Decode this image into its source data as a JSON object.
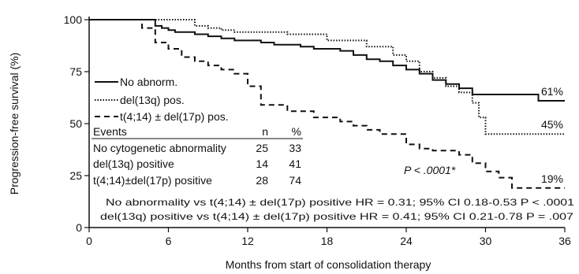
{
  "chart_data": {
    "type": "line",
    "subtype": "kaplan-meier step curves",
    "xlabel": "Months from start of consolidation therapy",
    "ylabel": "Progression-free survival (%)",
    "xlim": [
      0,
      36
    ],
    "ylim": [
      0,
      100
    ],
    "xticks": [
      0,
      6,
      12,
      18,
      24,
      30,
      36
    ],
    "yticks": [
      0,
      25,
      50,
      75,
      100
    ],
    "grid": false,
    "legend_position": "middle-left",
    "series": [
      {
        "name": "No abnorm.",
        "style": "solid",
        "color": "#111111",
        "end_label": "61%",
        "x": [
          0,
          3.5,
          5,
          5.5,
          6,
          6.5,
          8,
          9,
          10,
          11,
          12,
          13,
          14,
          16,
          17,
          19,
          20,
          21,
          22,
          23,
          24,
          25,
          26,
          27,
          28,
          29,
          34,
          36
        ],
        "y": [
          100,
          100,
          97,
          96,
          95,
          94,
          93,
          92,
          91,
          90,
          90,
          89,
          88,
          87,
          86,
          85,
          83,
          81,
          80,
          78,
          76,
          74,
          71,
          69,
          67,
          64,
          61,
          61
        ]
      },
      {
        "name": "del(13q) pos.",
        "style": "dotted",
        "color": "#111111",
        "end_label": "45%",
        "x": [
          0,
          6,
          8,
          9,
          10,
          11,
          12,
          15,
          18,
          21,
          23,
          24,
          25,
          26,
          27,
          28,
          29,
          29.5,
          30,
          36
        ],
        "y": [
          100,
          100,
          97,
          96,
          95,
          94,
          94,
          93,
          90,
          87,
          83,
          80,
          75,
          72,
          68,
          65,
          60,
          53,
          45,
          45
        ]
      },
      {
        "name": "t(4;14) ± del(17p) pos.",
        "style": "dashed",
        "color": "#111111",
        "end_label": "19%",
        "x": [
          0,
          3,
          4,
          5,
          6,
          7,
          8,
          9,
          10,
          11,
          12,
          13,
          15,
          17,
          19,
          20,
          21,
          22,
          24,
          25,
          26,
          28,
          29,
          30,
          31,
          32,
          36
        ],
        "y": [
          100,
          100,
          96,
          89,
          86,
          82,
          80,
          78,
          76,
          74,
          68,
          59,
          56,
          53,
          51,
          49,
          47,
          45,
          40,
          38,
          37,
          35,
          31,
          27,
          24,
          19,
          19
        ]
      }
    ],
    "events_table": {
      "title": "Events",
      "col_n": "n",
      "col_pct": "%",
      "rows": [
        {
          "label": "No cytogenetic abnormality",
          "n": "25",
          "pct": "33"
        },
        {
          "label": "del(13q) positive",
          "n": "14",
          "pct": "41"
        },
        {
          "label": "t(4;14)±del(17p) positive",
          "n": "28",
          "pct": "74"
        }
      ]
    },
    "annotations": {
      "pvalue": "P < .0001*",
      "note1": "No abnormality vs t(4;14) ± del(17p) positive HR = 0.31; 95% CI 0.18-0.53 P < .0001",
      "note2": "del(13q) positive vs t(4;14) ± del(17p) positive HR = 0.41; 95% CI 0.21-0.78 P = .007"
    }
  }
}
